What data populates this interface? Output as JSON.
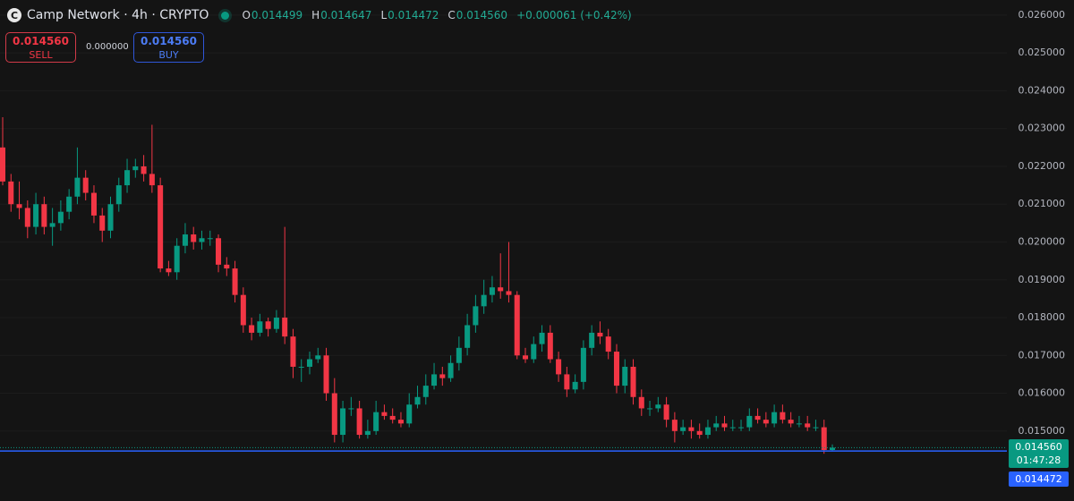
{
  "chart_data": {
    "type": "candlestick",
    "title": "Camp Network · 4h · CRYPTO",
    "open": [
      0.0225,
      0.0216,
      0.021,
      0.0209,
      0.0204,
      0.021,
      0.0204,
      0.0205,
      0.0208,
      0.0212,
      0.0217,
      0.0213,
      0.0207,
      0.0203,
      0.021,
      0.0215,
      0.0219,
      0.022,
      0.0218,
      0.0215,
      0.0193,
      0.0192,
      0.0199,
      0.0202,
      0.02,
      0.0201,
      0.0201,
      0.0194,
      0.0193,
      0.0186,
      0.0178,
      0.0176,
      0.0179,
      0.0177,
      0.018,
      0.0175,
      0.0167,
      0.0167,
      0.0169,
      0.017,
      0.016,
      0.0149,
      0.0156,
      0.0156,
      0.0149,
      0.015,
      0.0155,
      0.0154,
      0.0153,
      0.0152,
      0.0157,
      0.0159,
      0.0162,
      0.0165,
      0.0164,
      0.0168,
      0.0172,
      0.0178,
      0.0183,
      0.0186,
      0.0188,
      0.0187,
      0.0186,
      0.017,
      0.0169,
      0.0173,
      0.0176,
      0.0169,
      0.0165,
      0.0161,
      0.0163,
      0.0172,
      0.0176,
      0.0175,
      0.0171,
      0.0162,
      0.0167,
      0.0159,
      0.0156,
      0.0156,
      0.0157,
      0.0153,
      0.015,
      0.0151,
      0.015,
      0.0149,
      0.0151,
      0.0152,
      0.0151,
      0.0151,
      0.0151,
      0.0154,
      0.0153,
      0.0152,
      0.0155,
      0.0153,
      0.0152,
      0.0152,
      0.0151,
      0.0151,
      0.014499
    ],
    "high": [
      0.0233,
      0.0218,
      0.0216,
      0.0211,
      0.0213,
      0.0212,
      0.0209,
      0.0211,
      0.0214,
      0.0225,
      0.0219,
      0.0215,
      0.0209,
      0.0212,
      0.0217,
      0.0222,
      0.0222,
      0.0223,
      0.0231,
      0.0217,
      0.0195,
      0.0201,
      0.0205,
      0.0204,
      0.0203,
      0.0203,
      0.0202,
      0.0196,
      0.0195,
      0.0188,
      0.018,
      0.0181,
      0.018,
      0.0182,
      0.0204,
      0.0177,
      0.0169,
      0.0171,
      0.0172,
      0.0172,
      0.0164,
      0.0158,
      0.0159,
      0.0158,
      0.0153,
      0.0158,
      0.0157,
      0.0156,
      0.0155,
      0.016,
      0.0162,
      0.0165,
      0.0168,
      0.0167,
      0.017,
      0.0175,
      0.0181,
      0.0186,
      0.019,
      0.0191,
      0.0197,
      0.02,
      0.0187,
      0.0172,
      0.0175,
      0.0178,
      0.0178,
      0.0171,
      0.0167,
      0.0165,
      0.0174,
      0.0178,
      0.0179,
      0.0177,
      0.0173,
      0.0169,
      0.0169,
      0.0161,
      0.0158,
      0.0159,
      0.0159,
      0.0155,
      0.0153,
      0.0153,
      0.0152,
      0.0153,
      0.0154,
      0.0154,
      0.0153,
      0.0153,
      0.0156,
      0.0156,
      0.0155,
      0.0157,
      0.0157,
      0.0155,
      0.0154,
      0.0154,
      0.0153,
      0.0153,
      0.014647
    ],
    "low": [
      0.0215,
      0.0208,
      0.0206,
      0.0201,
      0.0202,
      0.0202,
      0.0199,
      0.0203,
      0.0206,
      0.021,
      0.0211,
      0.0205,
      0.02,
      0.0201,
      0.0208,
      0.0213,
      0.0217,
      0.0216,
      0.0213,
      0.0192,
      0.0191,
      0.019,
      0.0197,
      0.0198,
      0.0198,
      0.0199,
      0.0192,
      0.0191,
      0.0184,
      0.0176,
      0.0174,
      0.0175,
      0.0175,
      0.0176,
      0.0173,
      0.0164,
      0.0163,
      0.0165,
      0.0168,
      0.0158,
      0.0147,
      0.0147,
      0.0154,
      0.0148,
      0.0148,
      0.0149,
      0.0153,
      0.0152,
      0.0151,
      0.0151,
      0.0156,
      0.0157,
      0.0161,
      0.0162,
      0.0163,
      0.0166,
      0.017,
      0.0176,
      0.0181,
      0.0184,
      0.0185,
      0.0184,
      0.0169,
      0.0168,
      0.0168,
      0.0171,
      0.0168,
      0.0163,
      0.0159,
      0.016,
      0.0161,
      0.017,
      0.0173,
      0.0169,
      0.016,
      0.016,
      0.0157,
      0.0154,
      0.0154,
      0.0155,
      0.0151,
      0.0147,
      0.0149,
      0.0148,
      0.0148,
      0.0148,
      0.015,
      0.015,
      0.015,
      0.015,
      0.015,
      0.0152,
      0.0151,
      0.0151,
      0.0152,
      0.0151,
      0.0151,
      0.015,
      0.015,
      0.0144,
      0.014472
    ],
    "close": [
      0.0216,
      0.021,
      0.0209,
      0.0204,
      0.021,
      0.0204,
      0.0205,
      0.0208,
      0.0212,
      0.0217,
      0.0213,
      0.0207,
      0.0203,
      0.021,
      0.0215,
      0.0219,
      0.022,
      0.0218,
      0.0215,
      0.0193,
      0.0192,
      0.0199,
      0.0202,
      0.02,
      0.0201,
      0.0201,
      0.0194,
      0.0193,
      0.0186,
      0.0178,
      0.0176,
      0.0179,
      0.0177,
      0.018,
      0.0175,
      0.0167,
      0.0167,
      0.0169,
      0.017,
      0.016,
      0.0149,
      0.0156,
      0.0156,
      0.0149,
      0.015,
      0.0155,
      0.0154,
      0.0153,
      0.0152,
      0.0157,
      0.0159,
      0.0162,
      0.0165,
      0.0164,
      0.0168,
      0.0172,
      0.0178,
      0.0183,
      0.0186,
      0.0188,
      0.0187,
      0.0186,
      0.017,
      0.0169,
      0.0173,
      0.0176,
      0.0169,
      0.0165,
      0.0161,
      0.0163,
      0.0172,
      0.0176,
      0.0175,
      0.0171,
      0.0162,
      0.0167,
      0.0159,
      0.0156,
      0.0156,
      0.0157,
      0.0153,
      0.015,
      0.0151,
      0.015,
      0.0149,
      0.0151,
      0.0152,
      0.0151,
      0.0151,
      0.0151,
      0.0154,
      0.0153,
      0.0152,
      0.0155,
      0.0153,
      0.0152,
      0.0152,
      0.0151,
      0.0151,
      0.014499,
      0.01456
    ],
    "up_color": "#089981",
    "down_color": "#f23645",
    "ylim": [
      0.01315,
      0.0264
    ],
    "yticks": [
      {
        "value": 0.015,
        "label": "0.015000"
      },
      {
        "value": 0.016,
        "label": "0.016000"
      },
      {
        "value": 0.017,
        "label": "0.017000"
      },
      {
        "value": 0.018,
        "label": "0.018000"
      },
      {
        "value": 0.019,
        "label": "0.019000"
      },
      {
        "value": 0.02,
        "label": "0.020000"
      },
      {
        "value": 0.021,
        "label": "0.021000"
      },
      {
        "value": 0.022,
        "label": "0.022000"
      },
      {
        "value": 0.023,
        "label": "0.023000"
      },
      {
        "value": 0.024,
        "label": "0.024000"
      },
      {
        "value": 0.025,
        "label": "0.025000"
      },
      {
        "value": 0.026,
        "label": "0.026000"
      }
    ],
    "grid": true,
    "legend": {
      "o_label": "O",
      "o": "0.014499",
      "h_label": "H",
      "h": "0.014647",
      "l_label": "L",
      "l": "0.014472",
      "c_label": "C",
      "c": "0.014560",
      "change": "+0.000061 (+0.42%)"
    },
    "sell": {
      "price": "0.014560",
      "label": "SELL"
    },
    "spread": "0.000000",
    "buy": {
      "price": "0.014560",
      "label": "BUY"
    },
    "last_price": {
      "value": 0.01456,
      "label": "0.014560",
      "countdown": "01:47:28"
    },
    "low_line": {
      "value": 0.014472,
      "label": "0.014472"
    }
  }
}
